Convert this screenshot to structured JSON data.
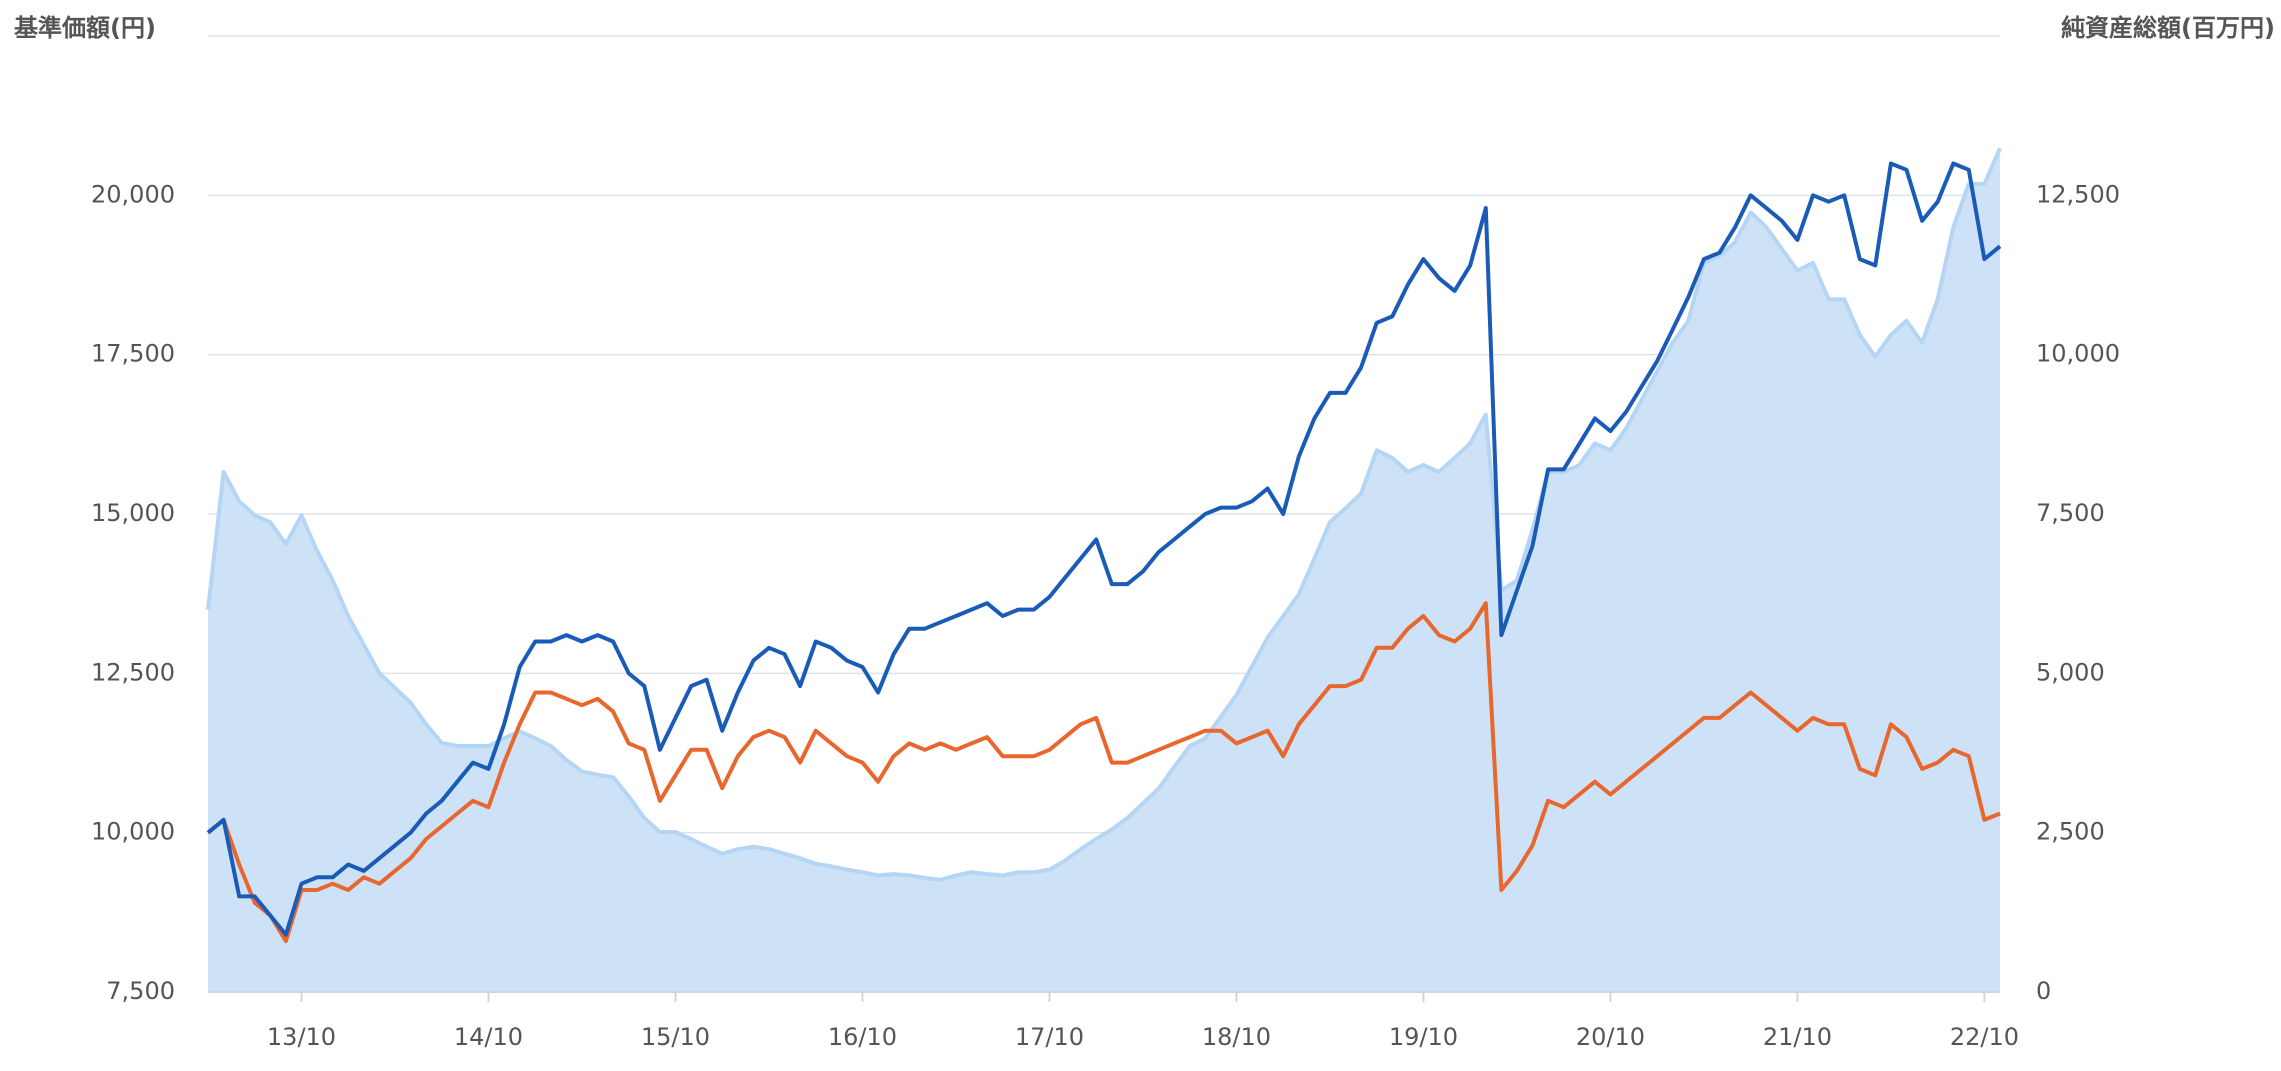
{
  "chart_data": {
    "type": "line",
    "y_label": "基準価額(円)",
    "y2_label": "純資産総額(百万円)",
    "categories": [
      null,
      null,
      null,
      null,
      null,
      null,
      "13/10",
      null,
      null,
      null,
      null,
      null,
      null,
      null,
      null,
      null,
      null,
      null,
      "14/10",
      null,
      null,
      null,
      null,
      null,
      null,
      null,
      null,
      null,
      null,
      null,
      "15/10",
      null,
      null,
      null,
      null,
      null,
      null,
      null,
      null,
      null,
      null,
      null,
      "16/10",
      null,
      null,
      null,
      null,
      null,
      null,
      null,
      null,
      null,
      null,
      null,
      "17/10",
      null,
      null,
      null,
      null,
      null,
      null,
      null,
      null,
      null,
      null,
      null,
      "18/10",
      null,
      null,
      null,
      null,
      null,
      null,
      null,
      null,
      null,
      null,
      null,
      "19/10",
      null,
      null,
      null,
      null,
      null,
      null,
      null,
      null,
      null,
      null,
      null,
      "20/10",
      null,
      null,
      null,
      null,
      null,
      null,
      null,
      null,
      null,
      null,
      null,
      "21/10",
      null,
      null,
      null,
      null,
      null,
      null,
      null,
      null,
      null,
      null,
      null,
      "22/10",
      null
    ],
    "series": [
      {
        "type": "area",
        "axis": "y2",
        "color": "#cde2f7",
        "line_color": "#b5d5f4",
        "values": [
          6000,
          8160,
          7700,
          7480,
          7370,
          7030,
          7480,
          6920,
          6460,
          5900,
          5450,
          5000,
          4770,
          4540,
          4200,
          3910,
          3860,
          3860,
          3860,
          3980,
          4090,
          3980,
          3860,
          3640,
          3460,
          3410,
          3370,
          3070,
          2730,
          2510,
          2510,
          2400,
          2280,
          2170,
          2240,
          2280,
          2240,
          2170,
          2100,
          2010,
          1970,
          1920,
          1880,
          1830,
          1850,
          1830,
          1790,
          1760,
          1830,
          1880,
          1850,
          1830,
          1880,
          1880,
          1920,
          2060,
          2240,
          2400,
          2550,
          2730,
          2960,
          3190,
          3530,
          3860,
          3980,
          4320,
          4660,
          5110,
          5560,
          5900,
          6240,
          6800,
          7370,
          7590,
          7820,
          8500,
          8380,
          8160,
          8270,
          8160,
          8380,
          8610,
          9060,
          6300,
          6460,
          7250,
          8160,
          8160,
          8270,
          8610,
          8500,
          8840,
          9290,
          9740,
          10190,
          10530,
          11440,
          11550,
          11770,
          12230,
          12000,
          11660,
          11320,
          11440,
          10870,
          10870,
          10310,
          9970,
          10310,
          10530,
          10190,
          10870,
          12000,
          12680,
          12680,
          13240
        ]
      },
      {
        "type": "line",
        "color": "#e8672e",
        "values": [
          10000,
          10200,
          9500,
          8900,
          8700,
          8300,
          9100,
          9100,
          9200,
          9100,
          9300,
          9200,
          9400,
          9600,
          9900,
          10100,
          10300,
          10500,
          10400,
          11100,
          11700,
          12200,
          12200,
          12100,
          12000,
          12100,
          11900,
          11400,
          11300,
          10500,
          10900,
          11300,
          11300,
          10700,
          11200,
          11500,
          11600,
          11500,
          11100,
          11600,
          11400,
          11200,
          11100,
          10800,
          11200,
          11400,
          11300,
          11400,
          11300,
          11400,
          11500,
          11200,
          11200,
          11200,
          11300,
          11500,
          11700,
          11800,
          11100,
          11100,
          11200,
          11300,
          11400,
          11500,
          11600,
          11600,
          11400,
          11500,
          11600,
          11200,
          11700,
          12000,
          12300,
          12300,
          12400,
          12900,
          12900,
          13200,
          13400,
          13100,
          13000,
          13200,
          13600,
          9100,
          9400,
          9800,
          10500,
          10400,
          10600,
          10800,
          10600,
          10800,
          11000,
          11200,
          11400,
          11600,
          11800,
          11800,
          12000,
          12200,
          12000,
          11800,
          11600,
          11800,
          11700,
          11700,
          11000,
          10900,
          11700,
          11500,
          11000,
          11100,
          11300,
          11200,
          10200,
          10300
        ]
      },
      {
        "type": "line",
        "color": "#1a5bb8",
        "values": [
          10000,
          10200,
          9000,
          9000,
          8700,
          8400,
          9200,
          9300,
          9300,
          9500,
          9400,
          9600,
          9800,
          10000,
          10300,
          10500,
          10800,
          11100,
          11000,
          11700,
          12600,
          13000,
          13000,
          13100,
          13000,
          13100,
          13000,
          12500,
          12300,
          11300,
          11800,
          12300,
          12400,
          11600,
          12200,
          12700,
          12900,
          12800,
          12300,
          13000,
          12900,
          12700,
          12600,
          12200,
          12800,
          13200,
          13200,
          13300,
          13400,
          13500,
          13600,
          13400,
          13500,
          13500,
          13700,
          14000,
          14300,
          14600,
          13900,
          13900,
          14100,
          14400,
          14600,
          14800,
          15000,
          15100,
          15100,
          15200,
          15400,
          15000,
          15900,
          16500,
          16900,
          16900,
          17300,
          18000,
          18100,
          18600,
          19000,
          18700,
          18500,
          18900,
          19800,
          13100,
          13800,
          14500,
          15700,
          15700,
          16100,
          16500,
          16300,
          16600,
          17000,
          17400,
          17900,
          18400,
          19000,
          19100,
          19500,
          20000,
          19800,
          19600,
          19300,
          20000,
          19900,
          20000,
          19000,
          18900,
          20500,
          20400,
          19600,
          19900,
          20500,
          20400,
          19000,
          19200
        ]
      }
    ],
    "ylim": [
      7500,
      22500
    ],
    "yticks": [
      {
        "value": 7500,
        "label": "7,500"
      },
      {
        "value": 10000,
        "label": "10,000"
      },
      {
        "value": 12500,
        "label": "12,500"
      },
      {
        "value": 15000,
        "label": "15,000"
      },
      {
        "value": 17500,
        "label": "17,500"
      },
      {
        "value": 20000,
        "label": "20,000"
      }
    ],
    "y2lim": [
      0,
      15000
    ],
    "y2ticks": [
      0,
      {
        "value": 2500,
        "label": "2,500"
      },
      {
        "value": 5000,
        "label": "5,000"
      },
      {
        "value": 7500,
        "label": "7,500"
      },
      {
        "value": 10000,
        "label": "10,000"
      },
      {
        "value": 12500,
        "label": "12,500"
      }
    ],
    "grid": true
  }
}
